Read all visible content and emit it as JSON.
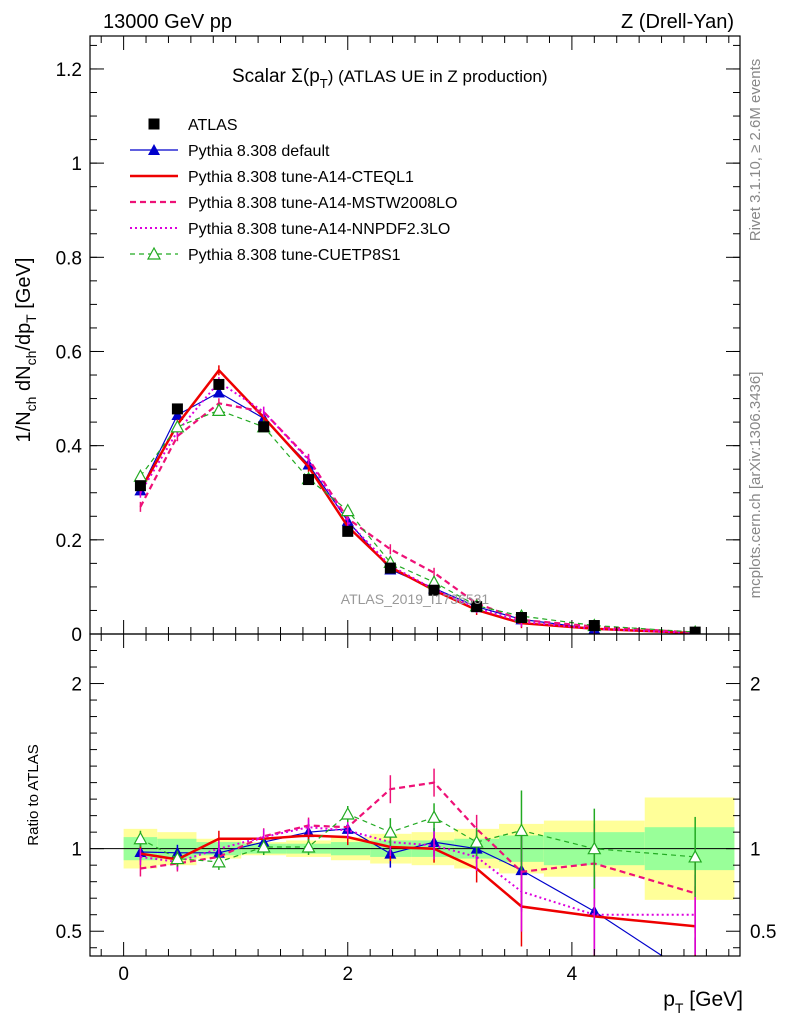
{
  "header": {
    "left": "13000 GeV pp",
    "right": "Z (Drell-Yan)"
  },
  "side_labels": {
    "rivet": "Rivet 3.1.10, ≥ 2.6M events",
    "mcplots": "mcplots.cern.ch [arXiv:1306.3436]"
  },
  "watermark": "ATLAS_2019_I1736531",
  "chart_data": [
    {
      "type": "line",
      "title": "Scalar Σ(p",
      "title_sub": "T",
      "title_tail": ") (ATLAS UE in Z production)",
      "ylabel": "1/N",
      "ylabel_sub1": "ch",
      "ylabel_mid": " dN",
      "ylabel_sub2": "ch",
      "ylabel_tail": "/dp",
      "ylabel_sub3": "T",
      "ylabel_unit": " [GeV]",
      "xlim": [
        -0.3,
        5.5
      ],
      "ylim": [
        0,
        1.27
      ],
      "yticks": [
        0,
        0.2,
        0.4,
        0.6,
        0.8,
        1,
        1.2
      ],
      "ytick_labels": [
        "0",
        "0.2",
        "0.4",
        "0.6",
        "0.8",
        "1",
        "1.2"
      ],
      "x": [
        0.15,
        0.48,
        0.85,
        1.25,
        1.65,
        2.0,
        2.38,
        2.77,
        3.15,
        3.55,
        4.2,
        5.1
      ],
      "series": [
        {
          "name": "ATLAS",
          "color": "#000000",
          "values": [
            0.315,
            0.478,
            0.53,
            0.44,
            0.328,
            0.218,
            0.14,
            0.093,
            0.058,
            0.035,
            0.018,
            0.004
          ]
        },
        {
          "name": "Pythia 8.308 default",
          "color": "#0000cc",
          "values": [
            0.305,
            0.465,
            0.513,
            0.458,
            0.36,
            0.24,
            0.137,
            0.097,
            0.058,
            0.031,
            0.011,
            0.001
          ]
        },
        {
          "name": "Pythia 8.308 tune-A14-CTEQL1",
          "color": "#ee0000",
          "values": [
            0.305,
            0.445,
            0.56,
            0.46,
            0.355,
            0.228,
            0.142,
            0.093,
            0.051,
            0.023,
            0.011,
            0.002
          ]
        },
        {
          "name": "Pythia 8.308 tune-A14-MSTW2008LO",
          "color": "#ee1177",
          "values": [
            0.27,
            0.42,
            0.49,
            0.472,
            0.372,
            0.245,
            0.18,
            0.13,
            0.065,
            0.03,
            0.016,
            0.003
          ]
        },
        {
          "name": "Pythia 8.308 tune-A14-NNPDF2.3LO",
          "color": "#dd00dd",
          "values": [
            0.3,
            0.43,
            0.535,
            0.472,
            0.37,
            0.238,
            0.145,
            0.095,
            0.055,
            0.026,
            0.011,
            0.002
          ]
        },
        {
          "name": "Pythia 8.308 tune-CUETP8S1",
          "color": "#22aa22",
          "values": [
            0.335,
            0.44,
            0.475,
            0.44,
            0.33,
            0.262,
            0.152,
            0.11,
            0.06,
            0.038,
            0.018,
            0.004
          ]
        }
      ]
    },
    {
      "type": "line",
      "ylabel": "Ratio to ATLAS",
      "xlabel": "p",
      "xlabel_sub": "T",
      "xlabel_unit": " [GeV]",
      "xlim": [
        -0.3,
        5.5
      ],
      "ylim": [
        0.35,
        2.3
      ],
      "yticks": [
        0.5,
        1,
        2
      ],
      "ytick_labels": [
        "0.5",
        "1",
        "2"
      ],
      "xticks": [
        0,
        2,
        4
      ],
      "xtick_labels": [
        "0",
        "2",
        "4"
      ],
      "x": [
        0.15,
        0.48,
        0.85,
        1.25,
        1.65,
        2.0,
        2.38,
        2.77,
        3.15,
        3.55,
        4.2,
        5.1
      ],
      "bands": {
        "edges": [
          -0.0,
          0.3,
          0.65,
          1.05,
          1.45,
          1.85,
          2.2,
          2.57,
          2.95,
          3.35,
          3.75,
          4.65,
          5.45
        ],
        "inner": [
          0.07,
          0.06,
          0.04,
          0.03,
          0.03,
          0.04,
          0.05,
          0.05,
          0.06,
          0.08,
          0.1,
          0.13
        ],
        "outer": [
          0.12,
          0.1,
          0.06,
          0.04,
          0.05,
          0.07,
          0.09,
          0.1,
          0.12,
          0.15,
          0.17,
          0.31
        ]
      },
      "series": [
        {
          "name": "Pythia 8.308 default",
          "color": "#0000cc",
          "values": [
            0.98,
            0.975,
            0.975,
            1.04,
            1.1,
            1.12,
            0.97,
            1.04,
            1.0,
            0.87,
            0.62,
            0.22
          ]
        },
        {
          "name": "Pythia 8.308 tune-A14-CTEQL1",
          "color": "#ee0000",
          "values": [
            0.97,
            0.935,
            1.06,
            1.06,
            1.08,
            1.07,
            1.01,
            1.0,
            0.88,
            0.65,
            0.59,
            0.53
          ]
        },
        {
          "name": "Pythia 8.308 tune-A14-MSTW2008LO",
          "color": "#ee1177",
          "values": [
            0.88,
            0.91,
            0.95,
            1.075,
            1.14,
            1.13,
            1.36,
            1.4,
            1.12,
            0.86,
            0.91,
            0.73
          ]
        },
        {
          "name": "Pythia 8.308 tune-A14-NNPDF2.3LO",
          "color": "#dd00dd",
          "values": [
            0.95,
            0.92,
            1.0,
            1.07,
            1.13,
            1.11,
            1.04,
            1.02,
            0.95,
            0.74,
            0.6,
            0.6
          ]
        },
        {
          "name": "Pythia 8.308 tune-CUETP8S1",
          "color": "#22aa22",
          "values": [
            1.06,
            0.94,
            0.92,
            1.01,
            1.01,
            1.21,
            1.1,
            1.19,
            1.04,
            1.11,
            1.0,
            0.95
          ]
        }
      ]
    }
  ]
}
